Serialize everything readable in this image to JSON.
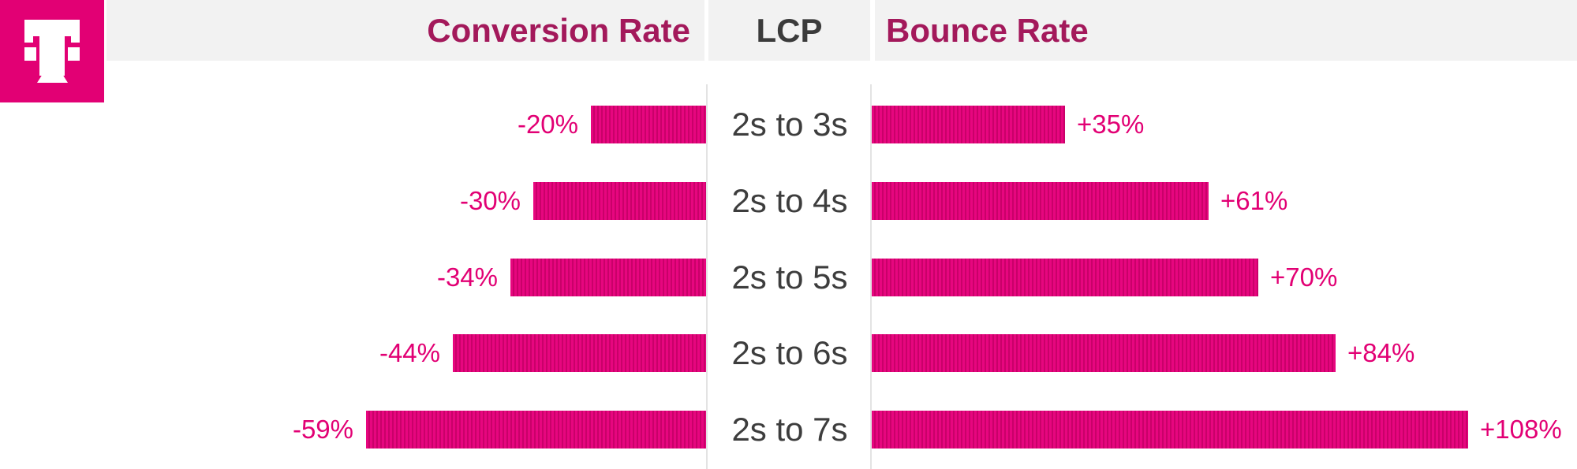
{
  "brand": {
    "logo": "telekom-t-logo",
    "magenta": "#e20074"
  },
  "header": {
    "left_label": "Conversion Rate",
    "center_label": "LCP",
    "right_label": "Bounce Rate",
    "accent_text_color": "#a3195b",
    "center_text_color": "#3b3b3b",
    "background": "#f2f2f2"
  },
  "chart_data": {
    "type": "bar",
    "variant": "diverging horizontal tornado chart, center category axis",
    "center_axis_title": "LCP",
    "categories": [
      "2s to 3s",
      "2s to 4s",
      "2s to 5s",
      "2s to 6s",
      "2s to 7s"
    ],
    "series": [
      {
        "name": "Conversion Rate",
        "side": "left",
        "unit": "%",
        "values": [
          -20,
          -30,
          -34,
          -44,
          -59
        ],
        "labels": [
          "-20%",
          "-30%",
          "-34%",
          "-44%",
          "-59%"
        ]
      },
      {
        "name": "Bounce Rate",
        "side": "right",
        "unit": "%",
        "values": [
          35,
          61,
          70,
          84,
          108
        ],
        "labels": [
          "+35%",
          "+61%",
          "+70%",
          "+84%",
          "+108%"
        ]
      }
    ],
    "bar_color": "#e20074",
    "bar_stripe_light": "#e7067f",
    "bar_stripe_dark": "#c90169",
    "value_label_color": "#e20074",
    "category_label_color": "#3d3d3d",
    "legend": "none",
    "grid": "none"
  }
}
